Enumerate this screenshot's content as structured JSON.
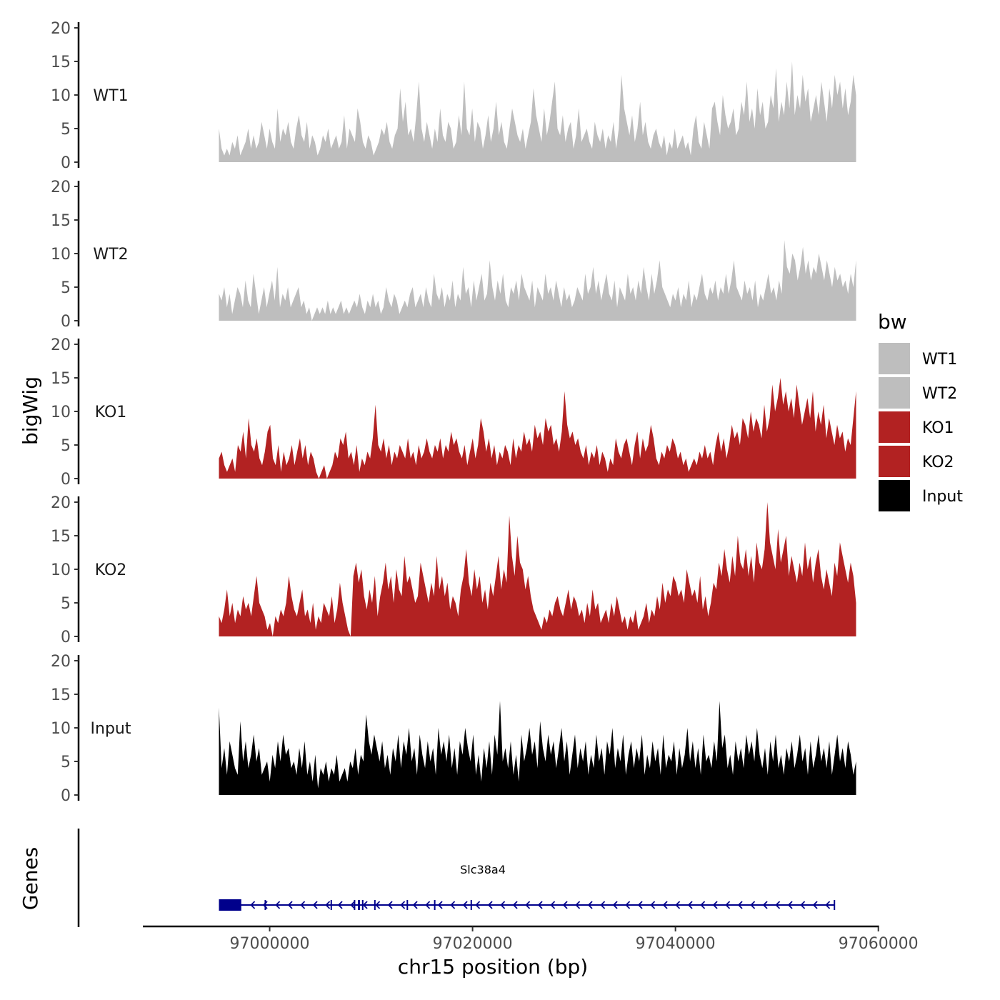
{
  "chart_data": {
    "type": "area",
    "chromosome": "chr15",
    "xlabel": "chr15 position (bp)",
    "ylabel": "bigWig",
    "genes_axis_label": "Genes",
    "xlim": [
      96987500,
      97060000
    ],
    "x_ticks": [
      97000000,
      97020000,
      97040000,
      97060000
    ],
    "x_tick_labels": [
      "97000000",
      "97020000",
      "97040000",
      "97060000"
    ],
    "ylim": [
      0,
      20
    ],
    "y_ticks": [
      0,
      5,
      10,
      15,
      20
    ],
    "y_tick_labels": [
      "0",
      "5",
      "10",
      "15",
      "20"
    ],
    "data_range": [
      96995000,
      97057800
    ],
    "bin_size": 500,
    "tracks": [
      {
        "name": "WT1",
        "color": "#bebebe",
        "values": [
          5,
          2,
          1,
          2,
          1,
          3,
          2,
          4,
          1,
          2,
          3,
          5,
          2,
          4,
          2,
          3,
          6,
          4,
          2,
          5,
          3,
          2,
          8,
          3,
          5,
          4,
          6,
          3,
          2,
          5,
          7,
          4,
          3,
          6,
          2,
          4,
          3,
          1,
          2,
          4,
          3,
          5,
          2,
          3,
          4,
          2,
          3,
          7,
          2,
          5,
          4,
          3,
          8,
          6,
          3,
          2,
          4,
          3,
          1,
          2,
          3,
          5,
          4,
          6,
          3,
          2,
          4,
          5,
          11,
          6,
          9,
          4,
          5,
          3,
          7,
          12,
          5,
          3,
          6,
          4,
          2,
          5,
          3,
          8,
          4,
          3,
          6,
          5,
          2,
          3,
          7,
          4,
          12,
          5,
          4,
          8,
          3,
          6,
          5,
          2,
          4,
          7,
          3,
          5,
          9,
          4,
          6,
          3,
          2,
          5,
          8,
          6,
          4,
          3,
          5,
          2,
          4,
          6,
          11,
          7,
          5,
          3,
          8,
          4,
          6,
          9,
          12,
          5,
          4,
          7,
          3,
          5,
          6,
          2,
          4,
          8,
          3,
          4,
          5,
          3,
          2,
          6,
          4,
          3,
          5,
          2,
          4,
          3,
          6,
          2,
          5,
          13,
          8,
          6,
          4,
          7,
          3,
          5,
          9,
          4,
          6,
          3,
          2,
          4,
          5,
          3,
          2,
          4,
          1,
          3,
          2,
          5,
          2,
          3,
          4,
          2,
          3,
          1,
          5,
          7,
          3,
          2,
          6,
          4,
          2,
          8,
          9,
          6,
          4,
          10,
          7,
          5,
          6,
          8,
          4,
          5,
          9,
          7,
          12,
          6,
          8,
          5,
          11,
          7,
          9,
          5,
          6,
          10,
          8,
          14,
          6,
          9,
          7,
          12,
          8,
          15,
          7,
          10,
          8,
          13,
          9,
          11,
          6,
          8,
          10,
          7,
          12,
          9,
          6,
          11,
          8,
          13,
          10,
          12,
          8,
          11,
          7,
          9,
          13,
          10
        ]
      },
      {
        "name": "WT2",
        "color": "#bebebe",
        "values": [
          4,
          3,
          5,
          2,
          4,
          1,
          3,
          5,
          4,
          2,
          6,
          3,
          2,
          7,
          4,
          1,
          3,
          5,
          2,
          4,
          6,
          3,
          8,
          2,
          4,
          3,
          5,
          2,
          3,
          4,
          5,
          2,
          3,
          1,
          2,
          0,
          1,
          2,
          1,
          2,
          1,
          3,
          1,
          2,
          1,
          2,
          3,
          1,
          2,
          1,
          2,
          3,
          2,
          4,
          2,
          1,
          3,
          2,
          4,
          2,
          3,
          1,
          2,
          5,
          3,
          2,
          4,
          3,
          1,
          2,
          3,
          2,
          4,
          5,
          2,
          3,
          4,
          2,
          5,
          3,
          2,
          7,
          4,
          3,
          5,
          2,
          4,
          3,
          6,
          2,
          4,
          3,
          8,
          4,
          5,
          2,
          6,
          3,
          5,
          7,
          3,
          4,
          9,
          5,
          3,
          6,
          4,
          7,
          3,
          2,
          5,
          4,
          6,
          3,
          7,
          5,
          4,
          3,
          6,
          2,
          5,
          4,
          3,
          7,
          4,
          5,
          3,
          6,
          4,
          2,
          5,
          3,
          4,
          2,
          3,
          5,
          4,
          3,
          7,
          4,
          5,
          8,
          4,
          6,
          3,
          5,
          7,
          4,
          3,
          6,
          2,
          5,
          4,
          3,
          7,
          4,
          5,
          3,
          6,
          4,
          8,
          5,
          3,
          7,
          4,
          6,
          9,
          5,
          4,
          3,
          2,
          4,
          3,
          5,
          2,
          4,
          3,
          6,
          2,
          4,
          3,
          5,
          7,
          4,
          3,
          5,
          4,
          6,
          3,
          5,
          4,
          7,
          4,
          6,
          9,
          5,
          4,
          3,
          6,
          4,
          5,
          3,
          6,
          2,
          4,
          3,
          5,
          7,
          4,
          5,
          3,
          6,
          4,
          12,
          8,
          7,
          10,
          9,
          6,
          8,
          11,
          7,
          9,
          6,
          8,
          7,
          10,
          8,
          6,
          9,
          7,
          5,
          8,
          6,
          7,
          5,
          6,
          4,
          7,
          5,
          9
        ]
      },
      {
        "name": "KO1",
        "color": "#b22222",
        "values": [
          3,
          4,
          2,
          1,
          2,
          3,
          1,
          5,
          4,
          7,
          3,
          9,
          5,
          4,
          6,
          3,
          2,
          4,
          7,
          8,
          3,
          2,
          5,
          1,
          4,
          2,
          3,
          5,
          2,
          4,
          6,
          3,
          5,
          2,
          4,
          3,
          1,
          0,
          1,
          2,
          0,
          1,
          2,
          4,
          3,
          6,
          5,
          7,
          3,
          4,
          2,
          5,
          1,
          3,
          2,
          4,
          3,
          6,
          11,
          5,
          4,
          6,
          3,
          5,
          2,
          4,
          3,
          5,
          4,
          3,
          6,
          3,
          4,
          2,
          5,
          3,
          4,
          6,
          4,
          3,
          5,
          4,
          6,
          3,
          5,
          4,
          7,
          5,
          6,
          4,
          3,
          5,
          2,
          4,
          6,
          3,
          5,
          9,
          7,
          4,
          6,
          3,
          5,
          2,
          4,
          3,
          5,
          4,
          2,
          6,
          3,
          5,
          4,
          7,
          5,
          6,
          4,
          8,
          6,
          7,
          5,
          9,
          7,
          8,
          5,
          6,
          4,
          7,
          13,
          8,
          6,
          7,
          5,
          6,
          4,
          3,
          5,
          2,
          4,
          3,
          5,
          2,
          4,
          3,
          1,
          3,
          2,
          6,
          4,
          3,
          5,
          6,
          4,
          2,
          5,
          7,
          3,
          6,
          4,
          5,
          8,
          6,
          3,
          2,
          4,
          3,
          5,
          4,
          6,
          5,
          3,
          4,
          2,
          3,
          1,
          2,
          3,
          2,
          4,
          3,
          5,
          3,
          4,
          2,
          5,
          7,
          4,
          6,
          3,
          5,
          8,
          6,
          7,
          5,
          9,
          8,
          6,
          10,
          7,
          9,
          8,
          6,
          11,
          7,
          9,
          14,
          10,
          12,
          15,
          11,
          13,
          10,
          12,
          9,
          14,
          11,
          8,
          10,
          12,
          9,
          13,
          7,
          10,
          8,
          11,
          6,
          9,
          7,
          5,
          8,
          6,
          7,
          4,
          6,
          5,
          9,
          13
        ]
      },
      {
        "name": "KO2",
        "color": "#b22222",
        "values": [
          3,
          2,
          4,
          7,
          3,
          5,
          2,
          4,
          3,
          6,
          4,
          5,
          3,
          6,
          9,
          5,
          4,
          3,
          1,
          2,
          0,
          3,
          2,
          4,
          3,
          5,
          9,
          6,
          4,
          3,
          5,
          7,
          3,
          4,
          2,
          5,
          1,
          3,
          2,
          5,
          4,
          3,
          6,
          2,
          4,
          8,
          5,
          3,
          1,
          0,
          9,
          11,
          8,
          10,
          6,
          4,
          7,
          5,
          9,
          3,
          6,
          8,
          11,
          7,
          9,
          5,
          10,
          7,
          6,
          12,
          8,
          9,
          7,
          5,
          6,
          11,
          9,
          7,
          5,
          8,
          6,
          12,
          7,
          9,
          6,
          8,
          4,
          6,
          5,
          3,
          7,
          9,
          13,
          8,
          6,
          10,
          7,
          9,
          5,
          7,
          4,
          8,
          6,
          9,
          12,
          7,
          10,
          8,
          18,
          12,
          9,
          15,
          11,
          10,
          7,
          9,
          6,
          4,
          3,
          2,
          1,
          3,
          2,
          4,
          3,
          5,
          6,
          4,
          3,
          5,
          7,
          4,
          6,
          5,
          3,
          4,
          2,
          5,
          3,
          7,
          4,
          5,
          2,
          3,
          4,
          2,
          5,
          3,
          6,
          4,
          2,
          3,
          1,
          3,
          2,
          4,
          1,
          2,
          3,
          5,
          2,
          4,
          3,
          6,
          4,
          8,
          5,
          7,
          6,
          9,
          8,
          6,
          7,
          5,
          10,
          8,
          6,
          7,
          5,
          9,
          4,
          6,
          3,
          5,
          8,
          7,
          11,
          9,
          13,
          10,
          8,
          12,
          9,
          15,
          11,
          10,
          13,
          9,
          12,
          8,
          14,
          11,
          10,
          13,
          20,
          14,
          12,
          10,
          16,
          11,
          13,
          15,
          9,
          12,
          10,
          8,
          11,
          9,
          14,
          10,
          12,
          8,
          11,
          13,
          9,
          7,
          10,
          8,
          6,
          11,
          9,
          14,
          12,
          10,
          8,
          11,
          9,
          5
        ]
      },
      {
        "name": "Input",
        "color": "#000000",
        "values": [
          13,
          4,
          7,
          3,
          8,
          6,
          4,
          3,
          11,
          5,
          8,
          4,
          6,
          9,
          5,
          7,
          3,
          4,
          5,
          2,
          6,
          4,
          8,
          5,
          9,
          6,
          7,
          4,
          5,
          3,
          7,
          4,
          8,
          3,
          5,
          2,
          6,
          1,
          4,
          3,
          5,
          2,
          4,
          3,
          6,
          2,
          3,
          4,
          2,
          5,
          4,
          7,
          3,
          6,
          5,
          12,
          8,
          6,
          9,
          7,
          5,
          8,
          4,
          6,
          3,
          7,
          5,
          9,
          4,
          8,
          6,
          10,
          5,
          7,
          3,
          9,
          6,
          4,
          8,
          5,
          7,
          3,
          10,
          6,
          8,
          5,
          9,
          4,
          7,
          3,
          8,
          6,
          10,
          7,
          5,
          9,
          3,
          6,
          2,
          7,
          4,
          8,
          3,
          9,
          6,
          14,
          5,
          7,
          4,
          8,
          3,
          6,
          2,
          9,
          5,
          7,
          10,
          6,
          8,
          4,
          11,
          7,
          5,
          9,
          6,
          8,
          4,
          7,
          10,
          5,
          8,
          3,
          6,
          9,
          4,
          7,
          5,
          8,
          3,
          6,
          4,
          9,
          5,
          7,
          3,
          8,
          6,
          10,
          4,
          7,
          5,
          9,
          3,
          6,
          8,
          4,
          7,
          5,
          9,
          3,
          6,
          4,
          8,
          5,
          7,
          3,
          9,
          4,
          6,
          5,
          8,
          3,
          7,
          4,
          6,
          10,
          5,
          8,
          4,
          7,
          3,
          9,
          5,
          6,
          4,
          8,
          5,
          14,
          7,
          9,
          4,
          6,
          3,
          8,
          5,
          7,
          4,
          9,
          6,
          8,
          5,
          10,
          6,
          4,
          7,
          3,
          8,
          5,
          9,
          4,
          6,
          3,
          7,
          5,
          8,
          4,
          6,
          9,
          5,
          7,
          3,
          8,
          4,
          6,
          9,
          5,
          7,
          4,
          8,
          3,
          6,
          9,
          5,
          7,
          4,
          8,
          6,
          3,
          5
        ]
      }
    ],
    "legend": {
      "title": "bw",
      "placement": "right",
      "entries": [
        {
          "label": "WT1",
          "color": "#bebebe"
        },
        {
          "label": "WT2",
          "color": "#bebebe"
        },
        {
          "label": "KO1",
          "color": "#b22222"
        },
        {
          "label": "KO2",
          "color": "#b22222"
        },
        {
          "label": "Input",
          "color": "#000000"
        }
      ]
    },
    "gene": {
      "name": "Slc38a4",
      "strand": "-",
      "color": "#00008b",
      "start": 96995000,
      "end": 97055700,
      "exons": [
        [
          96995000,
          96997200
        ],
        [
          96999500,
          96999600
        ],
        [
          97006000,
          97006100
        ],
        [
          97008300,
          97008400
        ],
        [
          97008700,
          97008900
        ],
        [
          97009100,
          97009200
        ],
        [
          97010300,
          97010400
        ],
        [
          97013500,
          97013600
        ],
        [
          97016200,
          97016300
        ],
        [
          97019800,
          97019900
        ],
        [
          97055600,
          97055700
        ]
      ]
    }
  }
}
